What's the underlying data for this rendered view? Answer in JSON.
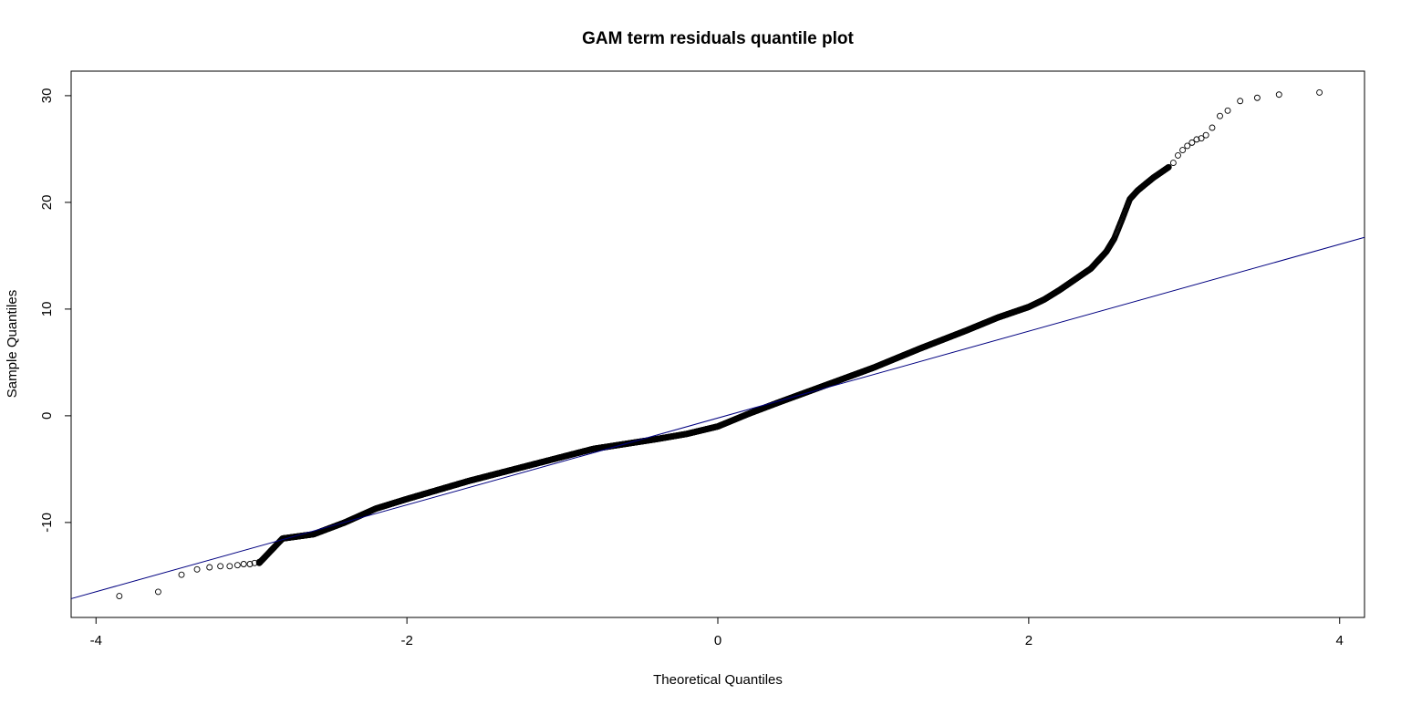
{
  "chart_data": {
    "type": "scatter",
    "title": "GAM term residuals quantile plot",
    "xlabel": "Theoretical Quantiles",
    "ylabel": "Sample Quantiles",
    "xlim": [
      -4.16,
      4.16
    ],
    "ylim": [
      -18.9,
      32.3
    ],
    "xticks": [
      -4,
      -2,
      0,
      2,
      4
    ],
    "yticks": [
      -10,
      0,
      10,
      20,
      30
    ],
    "grid": false,
    "legend": "none",
    "marker": "open-circle",
    "colors": {
      "points": "#000000",
      "reference_line": "#000080",
      "axes": "#000000"
    },
    "reference_line": {
      "intercept": -0.21,
      "slope": 4.07
    },
    "quantile_curve": {
      "x": [
        -2.95,
        -2.8,
        -2.6,
        -2.4,
        -2.2,
        -2.0,
        -1.6,
        -1.2,
        -0.8,
        -0.4,
        -0.2,
        0.0,
        0.2,
        0.4,
        0.7,
        1.0,
        1.3,
        1.6,
        1.8,
        2.0,
        2.1,
        2.2,
        2.3,
        2.4,
        2.5,
        2.55,
        2.6,
        2.65,
        2.7,
        2.8,
        2.9
      ],
      "y": [
        -13.8,
        -11.5,
        -11.1,
        -10.0,
        -8.7,
        -7.8,
        -6.1,
        -4.6,
        -3.1,
        -2.2,
        -1.7,
        -1.0,
        0.2,
        1.3,
        2.9,
        4.5,
        6.3,
        8.0,
        9.2,
        10.2,
        10.9,
        11.8,
        12.8,
        13.8,
        15.4,
        16.6,
        18.4,
        20.3,
        21.1,
        22.3,
        23.3
      ],
      "n": 2200
    },
    "tail_points": {
      "x": [
        -3.85,
        -3.6,
        -3.45,
        -3.35,
        -3.27,
        -3.2,
        -3.14,
        -3.09,
        -3.05,
        -3.01,
        -2.98,
        -2.95,
        2.93,
        2.96,
        2.99,
        3.02,
        3.05,
        3.08,
        3.11,
        3.14,
        3.18,
        3.23,
        3.28,
        3.36,
        3.47,
        3.61,
        3.87
      ],
      "y": [
        -16.9,
        -16.5,
        -14.9,
        -14.4,
        -14.2,
        -14.1,
        -14.1,
        -14.0,
        -13.9,
        -13.9,
        -13.8,
        -13.7,
        23.7,
        24.4,
        24.9,
        25.3,
        25.6,
        25.9,
        26.0,
        26.3,
        27.0,
        28.1,
        28.6,
        29.5,
        29.8,
        30.1,
        30.3
      ]
    }
  }
}
